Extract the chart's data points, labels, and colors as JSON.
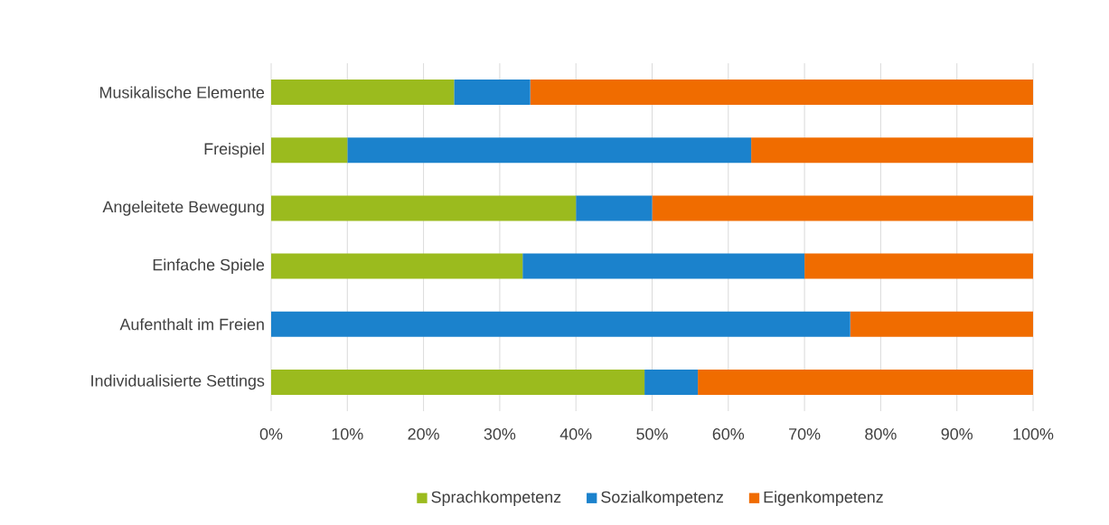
{
  "chart_data": {
    "type": "bar",
    "orientation": "horizontal",
    "stacked": true,
    "categories": [
      "Musikalische Elemente",
      "Freispiel",
      "Angeleitete Bewegung",
      "Einfache Spiele",
      "Aufenthalt im Freien",
      "Individualisierte Settings"
    ],
    "series": [
      {
        "name": "Sprachkompetenz",
        "color": "#9bbb1e",
        "values": [
          24,
          10,
          40,
          33,
          0,
          49
        ]
      },
      {
        "name": "Sozialkompetenz",
        "color": "#1b82cc",
        "values": [
          10,
          53,
          10,
          37,
          76,
          7
        ]
      },
      {
        "name": "Eigenkompetenz",
        "color": "#f06c00",
        "values": [
          66,
          37,
          50,
          30,
          24,
          44
        ]
      }
    ],
    "xlim": [
      0,
      100
    ],
    "xticks": [
      {
        "value": 0,
        "label": "0%"
      },
      {
        "value": 10,
        "label": "10%"
      },
      {
        "value": 20,
        "label": "20%"
      },
      {
        "value": 30,
        "label": "30%"
      },
      {
        "value": 40,
        "label": "40%"
      },
      {
        "value": 50,
        "label": "50%"
      },
      {
        "value": 60,
        "label": "60%"
      },
      {
        "value": 70,
        "label": "70%"
      },
      {
        "value": 80,
        "label": "80%"
      },
      {
        "value": 90,
        "label": "90%"
      },
      {
        "value": 100,
        "label": "100%"
      }
    ],
    "grid": "x",
    "legend": "bottom"
  }
}
